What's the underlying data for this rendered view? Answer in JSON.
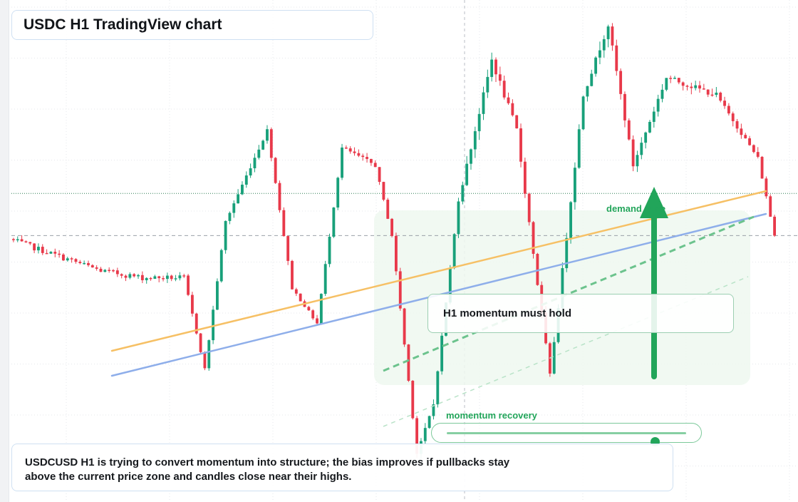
{
  "title": "USDC H1 TradingView chart",
  "annotations": {
    "momentum_note": "H1 momentum must hold",
    "demand_label": "demand zone",
    "recovery_label": "momentum recovery",
    "recovery_level": 0.87
  },
  "summary": {
    "line1": "USDCUSD H1 is trying to convert momentum into structure; the bias improves if pullbacks stay",
    "line2": "above the current price zone and candles close near their highs."
  },
  "colors": {
    "up": "#18a07a",
    "down": "#e8394a",
    "orange_line": "#f6c065",
    "blue_line": "#8eaeea",
    "green_accent": "#22a55a",
    "zone_fill": "#eef8f0"
  },
  "chart_data": {
    "type": "candlestick",
    "symbol": "USDCUSD",
    "timeframe": "H1",
    "ylim": [
      0.99935,
      1.00075
    ],
    "seed": 7,
    "segments": [
      {
        "n": 22,
        "start": 1.00009,
        "end": 1.0,
        "noise": 8e-06,
        "wick": 1.2e-05
      },
      {
        "n": 10,
        "start": 1.0,
        "end": 0.99998,
        "noise": 8e-06,
        "wick": 1.2e-05
      },
      {
        "n": 10,
        "start": 0.99998,
        "end": 0.99998,
        "noise": 7.5e-06,
        "wick": 1.2e-05
      },
      {
        "n": 5,
        "start": 0.99998,
        "end": 0.99972,
        "noise": 4e-06,
        "wick": 1e-05
      },
      {
        "n": 5,
        "start": 0.99972,
        "end": 1.00014,
        "noise": 4e-06,
        "wick": 1.2e-05
      },
      {
        "n": 10,
        "start": 1.00014,
        "end": 1.0004,
        "noise": 5e-06,
        "wick": 1.5e-05
      },
      {
        "n": 6,
        "start": 1.0004,
        "end": 0.99995,
        "noise": 4e-06,
        "wick": 1.2e-05
      },
      {
        "n": 6,
        "start": 0.99995,
        "end": 0.99985,
        "noise": 4e-06,
        "wick": 1e-05
      },
      {
        "n": 6,
        "start": 0.99985,
        "end": 1.00035,
        "noise": 4e-06,
        "wick": 1.2e-05
      },
      {
        "n": 8,
        "start": 1.00035,
        "end": 1.0003,
        "noise": 6e-06,
        "wick": 1.2e-05
      },
      {
        "n": 4,
        "start": 1.0003,
        "end": 1.0001,
        "noise": 3e-06,
        "wick": 1e-05
      },
      {
        "n": 6,
        "start": 1.0001,
        "end": 0.99948,
        "noise": 3e-06,
        "wick": 1.2e-05
      },
      {
        "n": 4,
        "start": 0.99948,
        "end": 0.99962,
        "noise": 3e-06,
        "wick": 1.5e-05
      },
      {
        "n": 6,
        "start": 0.99962,
        "end": 1.0002,
        "noise": 3e-06,
        "wick": 1.2e-05
      },
      {
        "n": 8,
        "start": 1.0002,
        "end": 1.0006,
        "noise": 8e-06,
        "wick": 2.5e-05
      },
      {
        "n": 6,
        "start": 1.0006,
        "end": 1.0004,
        "noise": 1e-05,
        "wick": 2.2e-05
      },
      {
        "n": 8,
        "start": 1.0004,
        "end": 0.9997,
        "noise": 8e-06,
        "wick": 2e-05
      },
      {
        "n": 8,
        "start": 0.9997,
        "end": 1.0005,
        "noise": 8e-06,
        "wick": 2.5e-05
      },
      {
        "n": 6,
        "start": 1.0005,
        "end": 1.0007,
        "noise": 8e-06,
        "wick": 2.5e-05
      },
      {
        "n": 6,
        "start": 1.0007,
        "end": 1.0003,
        "noise": 8e-06,
        "wick": 2e-05
      },
      {
        "n": 8,
        "start": 1.0003,
        "end": 1.00055,
        "noise": 8e-06,
        "wick": 1.8e-05
      },
      {
        "n": 12,
        "start": 1.00055,
        "end": 1.0005,
        "noise": 8e-06,
        "wick": 1.8e-05
      },
      {
        "n": 10,
        "start": 1.0005,
        "end": 1.00032,
        "noise": 6e-06,
        "wick": 1.5e-05
      },
      {
        "n": 4,
        "start": 1.00032,
        "end": 1.0001,
        "noise": 4e-06,
        "wick": 1e-05
      }
    ],
    "levels": {
      "dotted": 1.00022,
      "dashed": 1.0001
    },
    "trendlines": [
      {
        "name": "orange",
        "from": [
          0,
          0.99965
        ],
        "to": [
          1,
          1.0003
        ]
      },
      {
        "name": "blue",
        "from": [
          0,
          0.99955
        ],
        "to": [
          1,
          1.00025
        ]
      }
    ]
  }
}
